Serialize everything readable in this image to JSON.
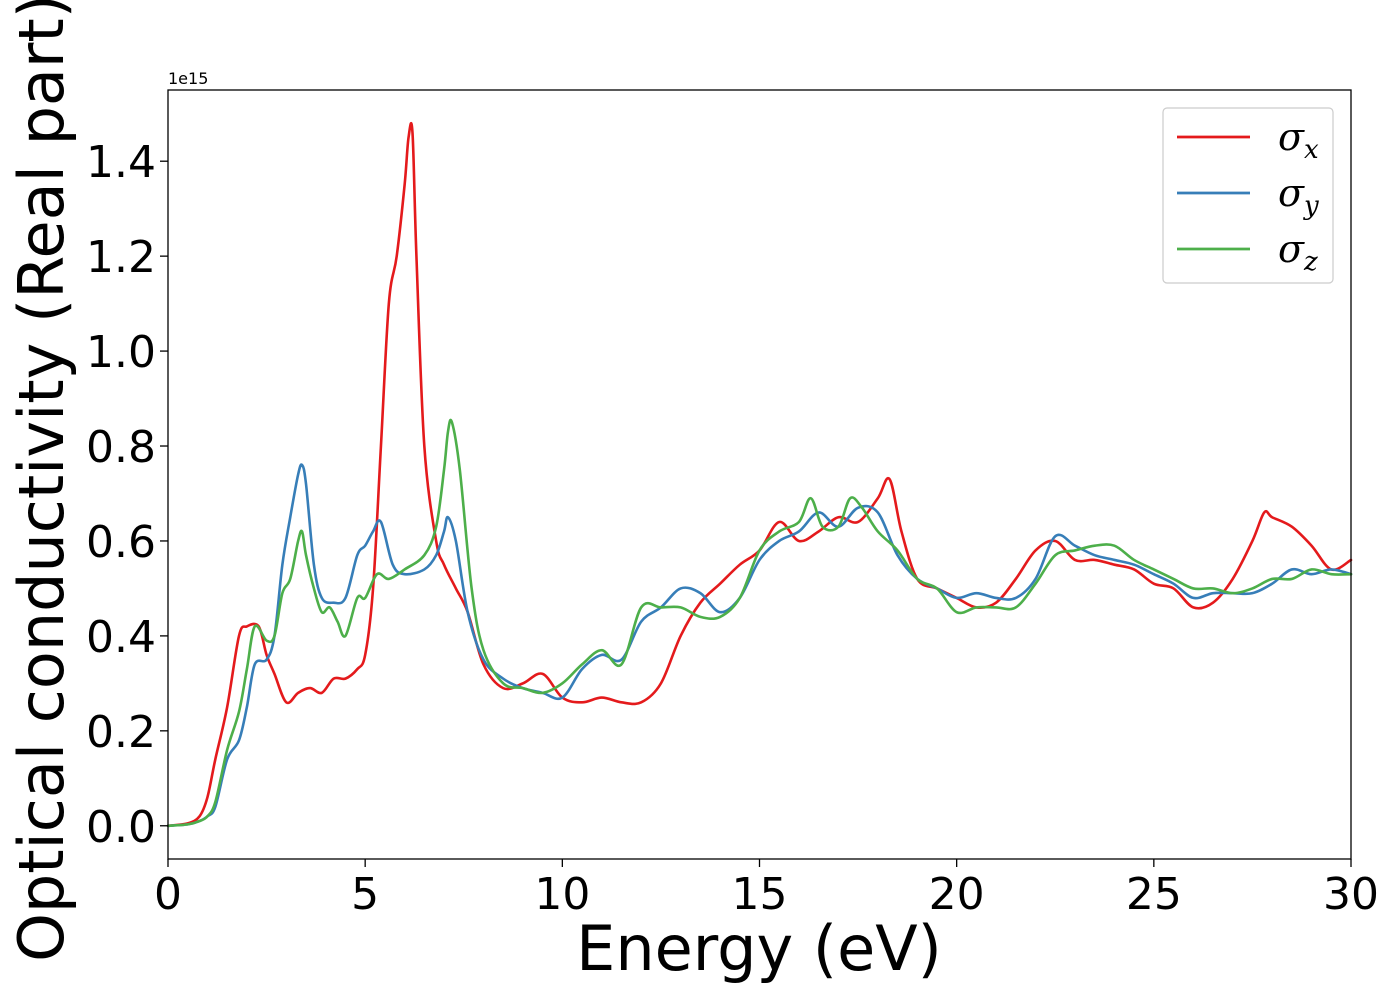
{
  "chart_data": {
    "type": "line",
    "xlabel": "Energy (eV)",
    "ylabel": "Optical conductivity (Real part)",
    "y_offset_label": "1e15",
    "xlim": [
      0,
      30
    ],
    "ylim": [
      -0.07,
      1.55
    ],
    "xticks": [
      0,
      5,
      10,
      15,
      20,
      25,
      30
    ],
    "xtick_labels": [
      "0",
      "5",
      "10",
      "15",
      "20",
      "25",
      "30"
    ],
    "yticks": [
      0.0,
      0.2,
      0.4,
      0.6,
      0.8,
      1.0,
      1.2,
      1.4
    ],
    "ytick_labels": [
      "0.0",
      "0.2",
      "0.4",
      "0.6",
      "0.8",
      "1.0",
      "1.2",
      "1.4"
    ],
    "legend_position": "top-right",
    "grid": false,
    "series": [
      {
        "name": "σx",
        "symbol": "σ",
        "subscript": "x",
        "color": "#e41a1c",
        "x": [
          0,
          0.5,
          0.8,
          1.0,
          1.2,
          1.5,
          1.8,
          2.0,
          2.3,
          2.5,
          2.7,
          3.0,
          3.3,
          3.6,
          3.9,
          4.2,
          4.5,
          4.8,
          5.0,
          5.2,
          5.4,
          5.6,
          5.8,
          6.0,
          6.1,
          6.2,
          6.3,
          6.5,
          6.8,
          7.0,
          7.3,
          7.6,
          8.0,
          8.5,
          9.0,
          9.5,
          10.0,
          10.5,
          11.0,
          11.5,
          12.0,
          12.5,
          13.0,
          13.5,
          14.0,
          14.5,
          15.0,
          15.5,
          16.0,
          16.5,
          17.0,
          17.5,
          18.0,
          18.3,
          18.6,
          19.0,
          19.5,
          20.0,
          20.5,
          21.0,
          21.5,
          22.0,
          22.5,
          23.0,
          23.5,
          24.0,
          24.5,
          25.0,
          25.5,
          26.0,
          26.5,
          27.0,
          27.5,
          27.8,
          28.0,
          28.5,
          29.0,
          29.5,
          30.0
        ],
        "y": [
          0,
          0.005,
          0.02,
          0.06,
          0.14,
          0.25,
          0.4,
          0.42,
          0.42,
          0.36,
          0.32,
          0.26,
          0.28,
          0.29,
          0.28,
          0.31,
          0.31,
          0.33,
          0.36,
          0.5,
          0.8,
          1.1,
          1.2,
          1.35,
          1.45,
          1.46,
          1.2,
          0.8,
          0.6,
          0.55,
          0.5,
          0.45,
          0.34,
          0.29,
          0.3,
          0.32,
          0.27,
          0.26,
          0.27,
          0.26,
          0.26,
          0.3,
          0.4,
          0.47,
          0.51,
          0.55,
          0.58,
          0.64,
          0.6,
          0.62,
          0.65,
          0.64,
          0.69,
          0.73,
          0.62,
          0.52,
          0.5,
          0.48,
          0.46,
          0.47,
          0.52,
          0.58,
          0.6,
          0.56,
          0.56,
          0.55,
          0.54,
          0.51,
          0.5,
          0.46,
          0.47,
          0.52,
          0.6,
          0.66,
          0.65,
          0.63,
          0.59,
          0.54,
          0.56
        ]
      },
      {
        "name": "σy",
        "symbol": "σ",
        "subscript": "y",
        "color": "#377eb8",
        "x": [
          0,
          0.5,
          0.8,
          1.0,
          1.2,
          1.5,
          1.8,
          2.0,
          2.2,
          2.5,
          2.7,
          2.9,
          3.1,
          3.3,
          3.4,
          3.5,
          3.7,
          3.9,
          4.2,
          4.5,
          4.8,
          5.0,
          5.2,
          5.4,
          5.7,
          6.0,
          6.5,
          6.8,
          7.0,
          7.1,
          7.3,
          7.6,
          8.0,
          8.5,
          9.0,
          9.5,
          10.0,
          10.5,
          11.0,
          11.5,
          12.0,
          12.5,
          13.0,
          13.5,
          14.0,
          14.5,
          15.0,
          15.5,
          16.0,
          16.5,
          17.0,
          17.5,
          18.0,
          18.5,
          19.0,
          19.5,
          20.0,
          20.5,
          21.0,
          21.5,
          22.0,
          22.5,
          23.0,
          23.5,
          24.0,
          24.5,
          25.0,
          25.5,
          26.0,
          26.5,
          27.0,
          27.5,
          28.0,
          28.5,
          29.0,
          29.5,
          30.0
        ],
        "y": [
          0,
          0.003,
          0.01,
          0.02,
          0.04,
          0.14,
          0.18,
          0.25,
          0.34,
          0.35,
          0.4,
          0.55,
          0.65,
          0.74,
          0.76,
          0.72,
          0.55,
          0.48,
          0.47,
          0.48,
          0.57,
          0.59,
          0.62,
          0.64,
          0.55,
          0.53,
          0.54,
          0.57,
          0.62,
          0.65,
          0.6,
          0.45,
          0.35,
          0.31,
          0.29,
          0.28,
          0.27,
          0.33,
          0.36,
          0.35,
          0.43,
          0.46,
          0.5,
          0.49,
          0.45,
          0.48,
          0.56,
          0.6,
          0.62,
          0.66,
          0.63,
          0.67,
          0.66,
          0.57,
          0.52,
          0.5,
          0.48,
          0.49,
          0.48,
          0.48,
          0.52,
          0.61,
          0.59,
          0.57,
          0.56,
          0.55,
          0.53,
          0.51,
          0.48,
          0.49,
          0.49,
          0.49,
          0.51,
          0.54,
          0.53,
          0.54,
          0.53
        ]
      },
      {
        "name": "σz",
        "symbol": "σ",
        "subscript": "z",
        "color": "#4daf4a",
        "x": [
          0,
          0.5,
          0.8,
          1.0,
          1.2,
          1.5,
          1.8,
          2.0,
          2.2,
          2.5,
          2.7,
          2.9,
          3.1,
          3.3,
          3.4,
          3.5,
          3.7,
          3.9,
          4.1,
          4.3,
          4.5,
          4.8,
          5.0,
          5.3,
          5.6,
          6.0,
          6.5,
          6.8,
          7.0,
          7.1,
          7.2,
          7.4,
          7.7,
          8.0,
          8.5,
          9.0,
          9.5,
          10.0,
          10.5,
          11.0,
          11.5,
          12.0,
          12.5,
          13.0,
          13.5,
          14.0,
          14.5,
          15.0,
          15.5,
          16.0,
          16.3,
          16.6,
          17.0,
          17.3,
          17.6,
          18.0,
          18.5,
          19.0,
          19.5,
          20.0,
          20.5,
          21.0,
          21.5,
          22.0,
          22.5,
          23.0,
          23.5,
          24.0,
          24.5,
          25.0,
          25.5,
          26.0,
          26.5,
          27.0,
          27.5,
          28.0,
          28.5,
          29.0,
          29.5,
          30.0
        ],
        "y": [
          0,
          0.003,
          0.01,
          0.02,
          0.05,
          0.16,
          0.24,
          0.33,
          0.42,
          0.39,
          0.4,
          0.49,
          0.52,
          0.6,
          0.62,
          0.57,
          0.5,
          0.45,
          0.46,
          0.43,
          0.4,
          0.48,
          0.48,
          0.53,
          0.52,
          0.54,
          0.57,
          0.63,
          0.75,
          0.83,
          0.85,
          0.75,
          0.5,
          0.37,
          0.3,
          0.29,
          0.28,
          0.3,
          0.34,
          0.37,
          0.34,
          0.46,
          0.46,
          0.46,
          0.44,
          0.44,
          0.48,
          0.58,
          0.62,
          0.64,
          0.69,
          0.63,
          0.63,
          0.69,
          0.67,
          0.62,
          0.58,
          0.52,
          0.5,
          0.45,
          0.46,
          0.46,
          0.46,
          0.51,
          0.57,
          0.58,
          0.59,
          0.59,
          0.56,
          0.54,
          0.52,
          0.5,
          0.5,
          0.49,
          0.5,
          0.52,
          0.52,
          0.54,
          0.53,
          0.53
        ]
      }
    ]
  }
}
